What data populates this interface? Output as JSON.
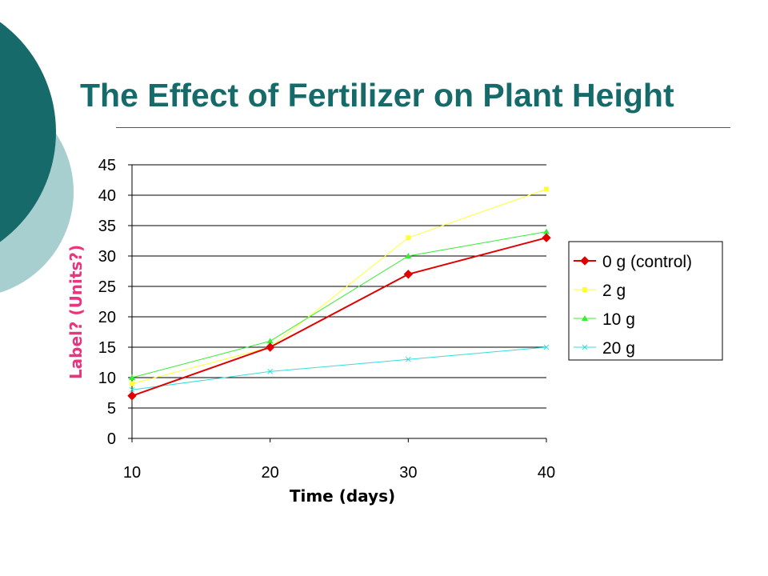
{
  "slide": {
    "title": "The Effect of Fertilizer on Plant Height"
  },
  "colors": {
    "title": "#176a6a",
    "decor_dark": "#176a6a",
    "decor_light": "#a7cfcf",
    "ylabel": "#e8357e",
    "xlabel": "#000000"
  },
  "chart_data": {
    "type": "line",
    "x": [
      10,
      20,
      30,
      40
    ],
    "xlabel": "Time (days)",
    "ylabel": "Label? (Units?)",
    "ylim": [
      0,
      45
    ],
    "yticks": [
      0,
      5,
      10,
      15,
      20,
      25,
      30,
      35,
      40,
      45
    ],
    "xticks": [
      10,
      20,
      30,
      40
    ],
    "grid": "horizontal",
    "legend_position": "right",
    "series": [
      {
        "name": "0 g (control)",
        "values": [
          7,
          15,
          27,
          33
        ],
        "color": "#e00000",
        "marker": "diamond"
      },
      {
        "name": "2 g",
        "values": [
          9,
          15,
          33,
          41
        ],
        "color": "#ffff33",
        "marker": "square"
      },
      {
        "name": "10 g",
        "values": [
          10,
          16,
          30,
          34
        ],
        "color": "#33ee33",
        "marker": "triangle"
      },
      {
        "name": "20 g",
        "values": [
          8,
          11,
          13,
          15
        ],
        "color": "#33dddd",
        "marker": "x"
      }
    ]
  }
}
